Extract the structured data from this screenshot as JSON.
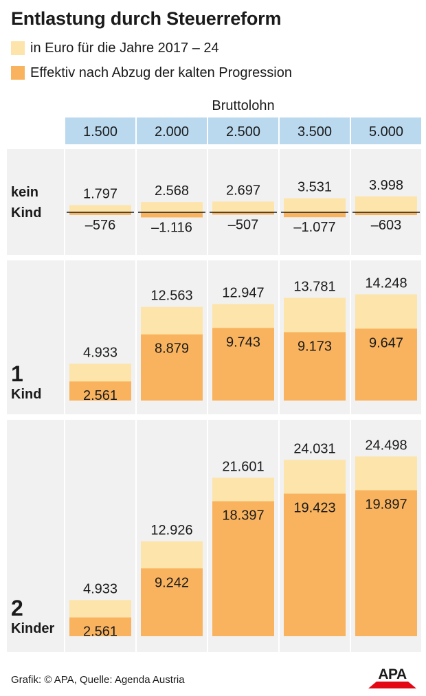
{
  "title": "Entlastung durch Steuerreform",
  "legend": [
    {
      "label": "in Euro für die Jahre 2017 – 24",
      "color": "#fde4ab"
    },
    {
      "label": "Effektiv nach Abzug der kalten Progression",
      "color": "#f9b35e"
    }
  ],
  "colors": {
    "light": "#fde4ab",
    "dark": "#f9b35e",
    "header": "#bad9ef",
    "panel": "#f1f1f1",
    "zero_line": "#1a1a1a"
  },
  "footer": "Grafik: © APA, Quelle: Agenda Austria",
  "logo": {
    "text": "APA"
  },
  "chart_data": {
    "type": "bar",
    "xlabel": "Bruttolohn",
    "categories": [
      "1.500",
      "2.000",
      "2.500",
      "3.500",
      "5.000"
    ],
    "panels": [
      {
        "label_big": "",
        "label_small": "kein\nKind",
        "series": [
          {
            "name": "in Euro für die Jahre 2017 – 24",
            "values": [
              1797,
              2568,
              2697,
              3531,
              3998
            ],
            "labels": [
              "1.797",
              "2.568",
              "2.697",
              "3.531",
              "3.998"
            ]
          },
          {
            "name": "Effektiv nach Abzug der kalten Progression",
            "values": [
              -576,
              -1116,
              -507,
              -1077,
              -603
            ],
            "labels": [
              "–576",
              "–1.116",
              "–507",
              "–1.077",
              "–603"
            ]
          }
        ]
      },
      {
        "label_big": "1",
        "label_small": "Kind",
        "series": [
          {
            "name": "in Euro für die Jahre 2017 – 24",
            "values": [
              4933,
              12563,
              12947,
              13781,
              14248
            ],
            "labels": [
              "4.933",
              "12.563",
              "12.947",
              "13.781",
              "14.248"
            ]
          },
          {
            "name": "Effektiv nach Abzug der kalten Progression",
            "values": [
              2561,
              8879,
              9743,
              9173,
              9647
            ],
            "labels": [
              "2.561",
              "8.879",
              "9.743",
              "9.173",
              "9.647"
            ]
          }
        ]
      },
      {
        "label_big": "2",
        "label_small": "Kinder",
        "series": [
          {
            "name": "in Euro für die Jahre 2017 – 24",
            "values": [
              4933,
              12926,
              21601,
              24031,
              24498
            ],
            "labels": [
              "4.933",
              "12.926",
              "21.601",
              "24.031",
              "24.498"
            ]
          },
          {
            "name": "Effektiv nach Abzug der kalten Progression",
            "values": [
              2561,
              9242,
              18397,
              19423,
              19897
            ],
            "labels": [
              "2.561",
              "9.242",
              "18.397",
              "19.423",
              "19.897"
            ]
          }
        ]
      }
    ]
  }
}
